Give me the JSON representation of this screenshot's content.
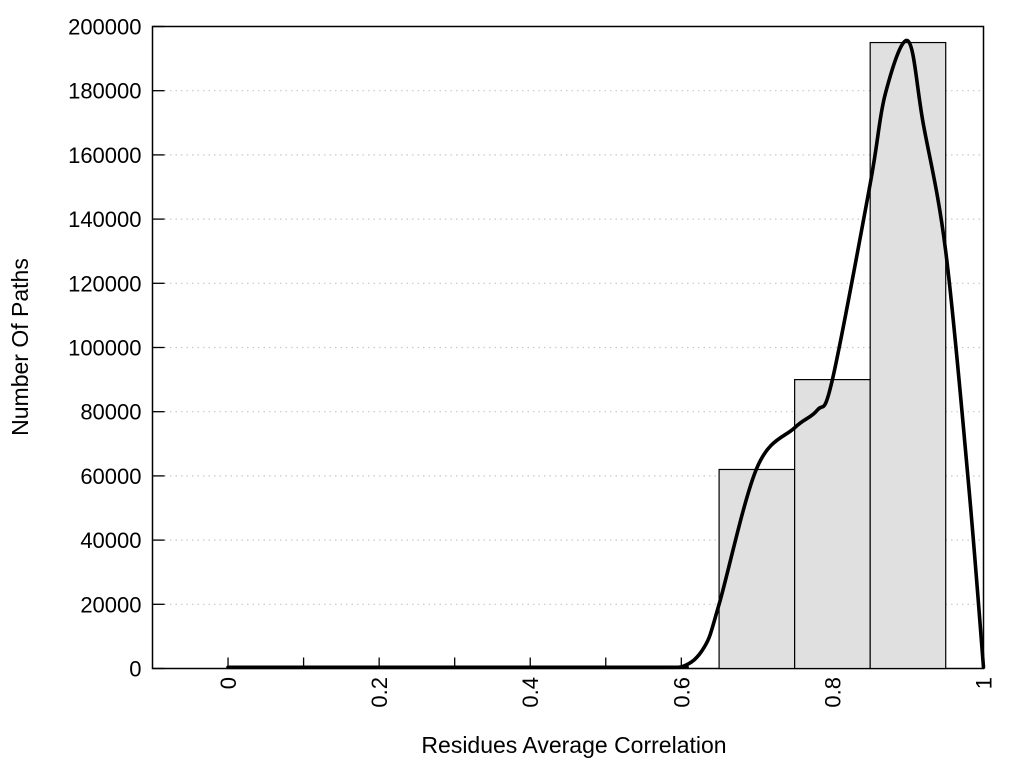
{
  "chart_data": {
    "type": "histogram_with_density_curve",
    "title": "",
    "xlabel": "Residues Average Correlation",
    "ylabel": "Number Of Paths",
    "xlim": [
      -0.1,
      1.0
    ],
    "ylim": [
      0,
      200000
    ],
    "x_major_ticks": [
      0,
      0.2,
      0.4,
      0.6,
      0.8,
      1
    ],
    "x_major_tick_labels": [
      "0",
      "0.2",
      "0.4",
      "0.6",
      "0.8",
      "1"
    ],
    "x_minor_tick_step": 0.1,
    "x_tick_label_rotation_deg": -90,
    "y_ticks": [
      0,
      20000,
      40000,
      60000,
      80000,
      100000,
      120000,
      140000,
      160000,
      180000,
      200000
    ],
    "y_tick_labels": [
      "0",
      "20000",
      "40000",
      "60000",
      "80000",
      "100000",
      "120000",
      "140000",
      "160000",
      "180000",
      "200000"
    ],
    "grid": {
      "horizontal": true,
      "vertical": false,
      "style": "dotted",
      "color": "#c8c8c8"
    },
    "legend": "none",
    "bars": [
      {
        "x_start": 0.65,
        "x_end": 0.75,
        "value": 62000
      },
      {
        "x_start": 0.75,
        "x_end": 0.85,
        "value": 90000
      },
      {
        "x_start": 0.85,
        "x_end": 0.95,
        "value": 195000
      }
    ],
    "bar_fill_color": "#e0e0e0",
    "bar_border_color": "#000000",
    "axis_color": "#000000",
    "background_color": "#ffffff",
    "curve": {
      "color": "#000000",
      "points": [
        [
          0.0,
          0
        ],
        [
          0.55,
          0
        ],
        [
          0.6,
          500
        ],
        [
          0.63,
          6500
        ],
        [
          0.65,
          20000
        ],
        [
          0.7,
          62500
        ],
        [
          0.75,
          75000
        ],
        [
          0.78,
          80500
        ],
        [
          0.8,
          90000
        ],
        [
          0.85,
          151000
        ],
        [
          0.87,
          179000
        ],
        [
          0.9,
          195500
        ],
        [
          0.92,
          170000
        ],
        [
          0.95,
          130000
        ],
        [
          0.98,
          58000
        ],
        [
          1.0,
          0
        ]
      ]
    }
  }
}
